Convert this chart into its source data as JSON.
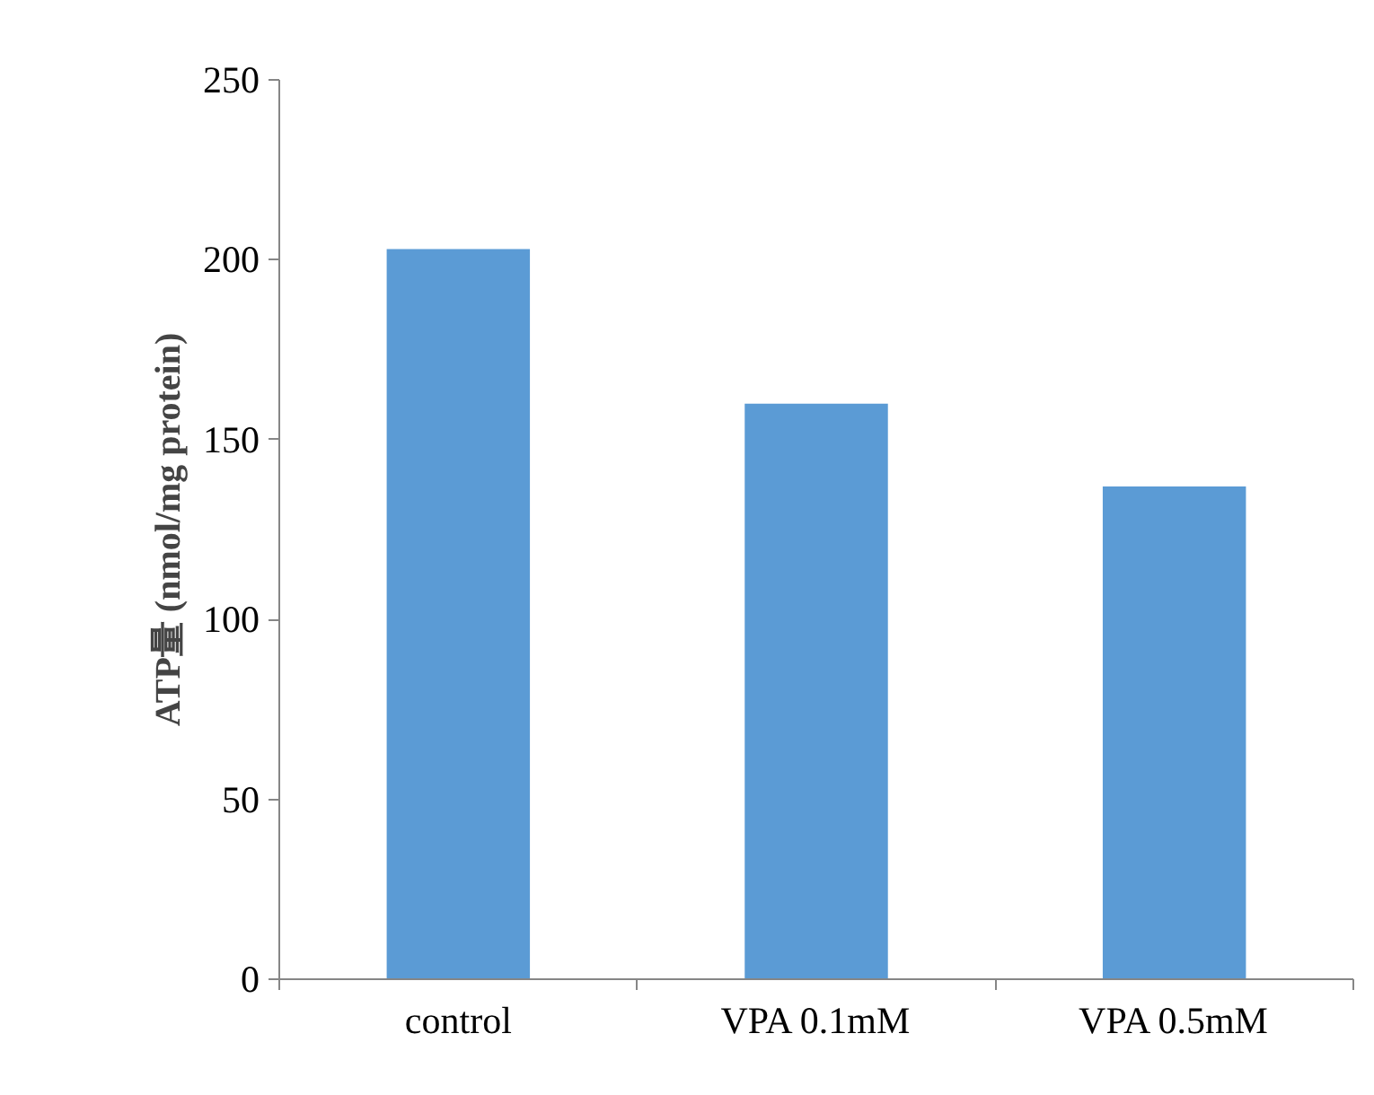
{
  "chart_data": {
    "type": "bar",
    "ylabel": "ATP量 (nmol/mg protein)",
    "categories": [
      "control",
      "VPA 0.1mM",
      "VPA 0.5mM"
    ],
    "values": [
      203,
      160,
      137
    ],
    "color": "#5b9bd5",
    "ylim": [
      0,
      250
    ],
    "yticks": [
      0,
      50,
      100,
      150,
      200,
      250
    ],
    "grid": false
  }
}
